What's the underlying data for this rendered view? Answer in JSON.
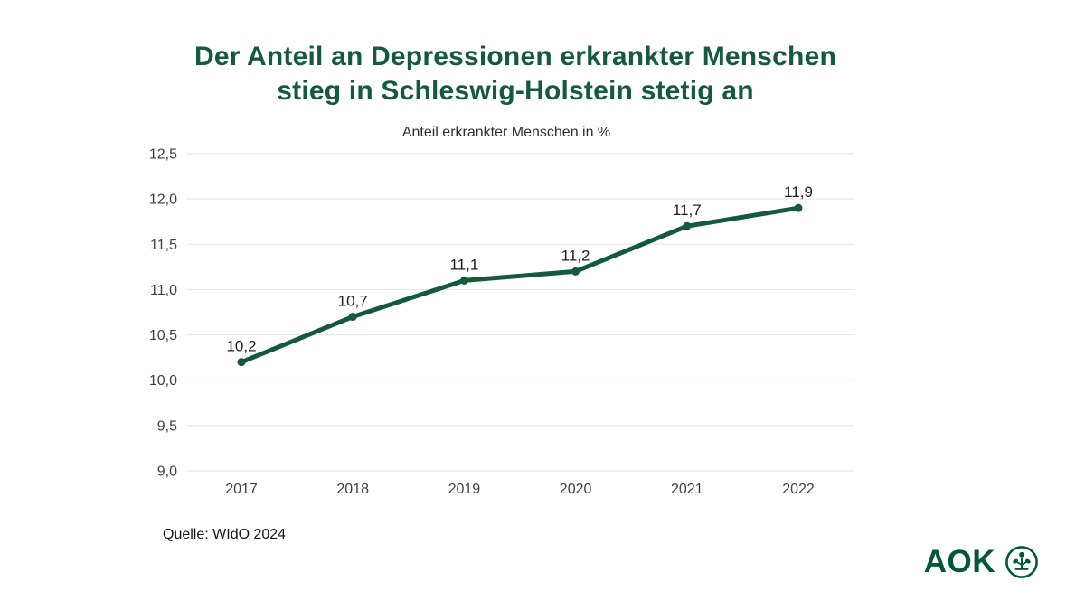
{
  "page": {
    "background": "#ffffff"
  },
  "title": {
    "lines": [
      "Der Anteil an Depressionen erkrankter Menschen",
      "stieg in Schleswig-Holstein stetig an"
    ],
    "color": "#15593f"
  },
  "chart_data": {
    "type": "line",
    "title": "Anteil erkrankter Menschen in %",
    "categories": [
      "2017",
      "2018",
      "2019",
      "2020",
      "2021",
      "2022"
    ],
    "series": [
      {
        "name": "Anteil erkrankter Menschen in %",
        "values": [
          10.2,
          10.7,
          11.1,
          11.2,
          11.7,
          11.9
        ]
      }
    ],
    "value_labels": [
      "10,2",
      "10,7",
      "11,1",
      "11,2",
      "11,7",
      "11,9"
    ],
    "ylim": [
      9.0,
      12.5
    ],
    "ytick_labels": [
      "12,5",
      "12,0",
      "11,5",
      "11,0",
      "10,5",
      "10,0",
      "9,5",
      "9,0"
    ],
    "grid": "horizontal",
    "legend": "none",
    "colors": {
      "line": "#14593a",
      "marker": "#14593a",
      "grid": "#e3e3e3",
      "tick_text": "#3f3f3f",
      "data_label_text": "#1c1c1c",
      "subtitle_text": "#2e2e2e"
    }
  },
  "source": {
    "label": "Quelle: WIdO 2024"
  },
  "logo": {
    "text": "AOK",
    "color": "#00573a",
    "icon": "aok-tree-of-life-icon"
  }
}
